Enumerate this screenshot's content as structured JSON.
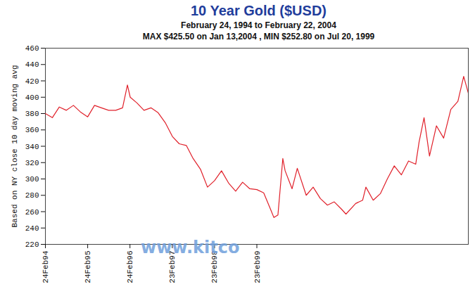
{
  "chart_data": {
    "type": "line",
    "title": "10 Year Gold ($USD)",
    "subtitle": [
      "February 24, 1994 to February 22, 2004",
      "MAX $425.50 on Jan 13,2004 , MIN $252.80 on Jul 20, 1999"
    ],
    "y_label": "Based on NY close 10 day moving avg",
    "annotations": [
      "www.kitco"
    ],
    "color": "#e0202a",
    "grid": false,
    "ylim": [
      220,
      460
    ],
    "yticks": [
      220,
      240,
      260,
      280,
      300,
      320,
      340,
      360,
      380,
      400,
      420,
      440,
      460
    ],
    "xlim": [
      "1994-02-24",
      "2004-02-22"
    ],
    "xticks": [
      {
        "value": "1994-02-24",
        "label": "24Feb94"
      },
      {
        "value": "1995-02-24",
        "label": "24Feb95"
      },
      {
        "value": "1996-02-24",
        "label": "24Feb96"
      },
      {
        "value": "1997-02-23",
        "label": "23Feb97"
      },
      {
        "value": "1998-02-23",
        "label": "23Feb98"
      },
      {
        "value": "1999-02-23",
        "label": "23Feb99"
      }
    ],
    "x": [
      "1994-02-24",
      "1994-04-25",
      "1994-06-24",
      "1994-08-24",
      "1994-10-24",
      "1994-12-23",
      "1995-02-24",
      "1995-04-24",
      "1995-06-23",
      "1995-08-24",
      "1995-10-24",
      "1995-12-22",
      "1996-02-02",
      "1996-02-26",
      "1996-04-24",
      "1996-06-24",
      "1996-08-23",
      "1996-10-24",
      "1996-12-24",
      "1997-02-24",
      "1997-04-24",
      "1997-06-24",
      "1997-08-22",
      "1997-10-24",
      "1997-12-24",
      "1998-02-23",
      "1998-04-24",
      "1998-06-24",
      "1998-08-24",
      "1998-10-23",
      "1998-12-24",
      "1999-02-23",
      "1999-04-23",
      "1999-06-24",
      "1999-07-20",
      "1999-08-24",
      "1999-10-05",
      "1999-10-25",
      "1999-12-24",
      "2000-02-07",
      "2000-04-24",
      "2000-06-23",
      "2000-08-24",
      "2000-10-24",
      "2000-12-22",
      "2001-02-23",
      "2001-04-02",
      "2001-06-25",
      "2001-08-24",
      "2001-09-21",
      "2001-11-23",
      "2002-01-24",
      "2002-03-25",
      "2002-05-24",
      "2002-07-24",
      "2002-09-24",
      "2002-11-25",
      "2002-12-24",
      "2003-02-05",
      "2003-03-24",
      "2003-05-23",
      "2003-07-24",
      "2003-09-24",
      "2003-11-24",
      "2004-01-13",
      "2004-02-22"
    ],
    "values": [
      380,
      375,
      388,
      384,
      390,
      382,
      376,
      390,
      387,
      384,
      384,
      387,
      415,
      400,
      393,
      384,
      387,
      381,
      369,
      352,
      343,
      341,
      325,
      312,
      290,
      298,
      310,
      295,
      285,
      296,
      288,
      287,
      283,
      262,
      252.8,
      256,
      325,
      310,
      288,
      313,
      280,
      290,
      276,
      268,
      272,
      263,
      257,
      270,
      274,
      290,
      274,
      282,
      300,
      316,
      305,
      322,
      318,
      345,
      375,
      328,
      365,
      350,
      385,
      395,
      425.5,
      405
    ]
  }
}
